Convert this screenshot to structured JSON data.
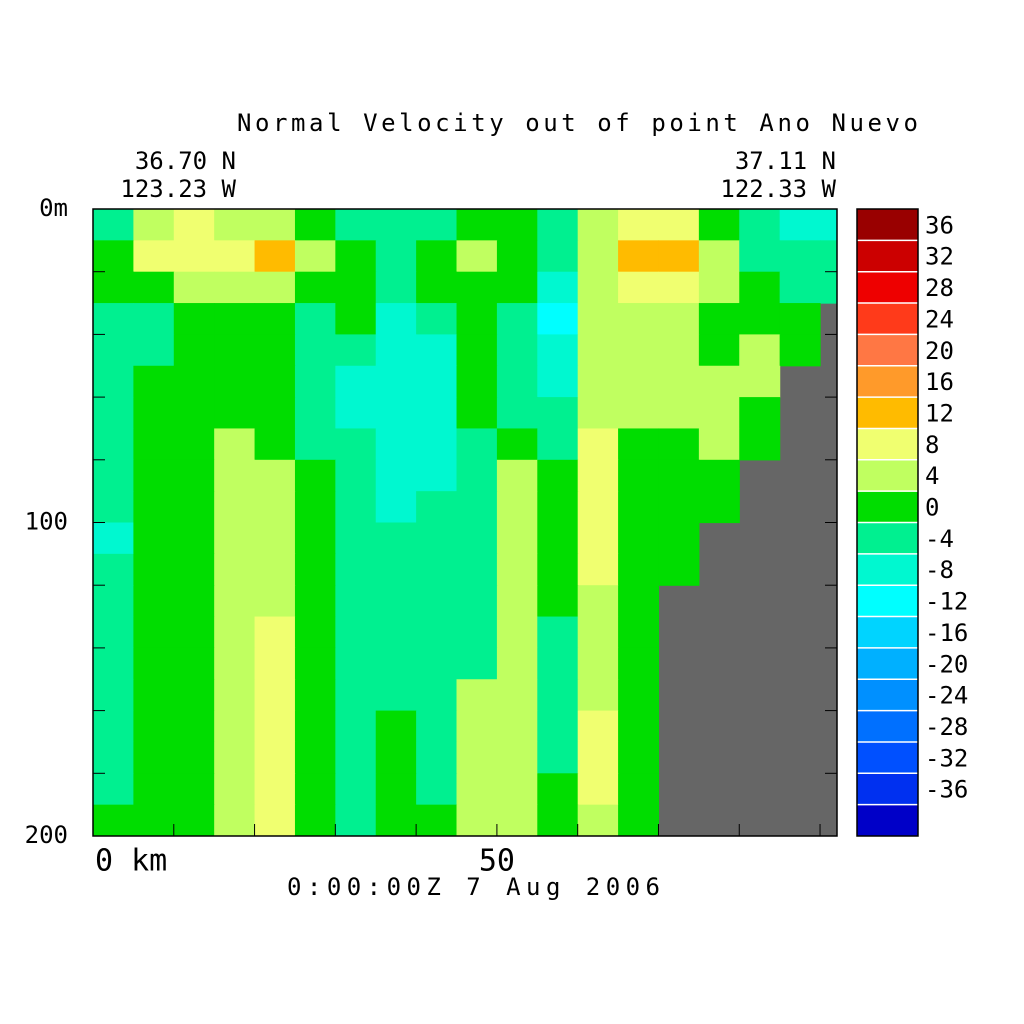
{
  "chart_data": {
    "type": "contourf",
    "title": "Normal Velocity out of point Ano Nuevo",
    "start_lat": "36.70 N",
    "start_lon": "123.23 W",
    "end_lat": "37.11 N",
    "end_lon": "122.33 W",
    "time_label": "0:00:00Z   7 Aug 2006",
    "xlim": [
      0,
      92.1
    ],
    "xticks": [
      {
        "value": 0,
        "label": "0 km"
      },
      50
    ],
    "xminor": [
      10,
      20,
      30,
      40,
      60,
      70,
      80,
      90
    ],
    "ylim": [
      0,
      200
    ],
    "yticks": [
      {
        "value": 0,
        "label": "0m"
      },
      100,
      200
    ],
    "yminor": [
      20,
      40,
      60,
      80,
      120,
      140,
      160,
      180
    ],
    "y_reversed": true,
    "land_color": "#666666",
    "clim": [
      -40,
      40
    ],
    "cticks": [
      -36,
      -32,
      -28,
      -24,
      -20,
      -16,
      -12,
      -8,
      -4,
      0,
      4,
      8,
      12,
      16,
      20,
      24,
      28,
      32,
      36
    ],
    "colors": [
      "#0000c8",
      "#0030f0",
      "#0050ff",
      "#0070ff",
      "#0090ff",
      "#00b0ff",
      "#00d4ff",
      "#00ffff",
      "#00f8d0",
      "#00f090",
      "#00dd00",
      "#c0ff60",
      "#f0ff70",
      "#ffbb00",
      "#ff9a2a",
      "#ff7744",
      "#ff3a1a",
      "#ee0000",
      "#cc0000",
      "#990000"
    ],
    "x": [
      2.5,
      7.5,
      12.5,
      17.5,
      22.5,
      27.5,
      32.5,
      37.5,
      42.5,
      47.5,
      52.5,
      57.5,
      62.5,
      67.5,
      72.5,
      77.5,
      82.5,
      87.5,
      92.5
    ],
    "depth": [
      5,
      15,
      25,
      35,
      45,
      55,
      65,
      75,
      85,
      95,
      105,
      115,
      125,
      135,
      145,
      155,
      165,
      175,
      185,
      195
    ],
    "z": [
      [
        -2,
        6,
        10,
        6,
        6,
        2,
        -2,
        -2,
        -2,
        2,
        2,
        -2,
        6,
        10,
        10,
        2,
        -2,
        -6,
        -6
      ],
      [
        2,
        10,
        10,
        10,
        14,
        6,
        2,
        -2,
        2,
        6,
        2,
        -2,
        6,
        14,
        14,
        6,
        -2,
        -2,
        -2
      ],
      [
        2,
        2,
        6,
        6,
        6,
        2,
        2,
        -2,
        2,
        2,
        2,
        -6,
        6,
        10,
        10,
        6,
        2,
        -2,
        -2
      ],
      [
        -2,
        -2,
        2,
        2,
        2,
        -2,
        2,
        -6,
        -2,
        2,
        -2,
        -10,
        6,
        6,
        6,
        2,
        2,
        2,
        null
      ],
      [
        -2,
        -2,
        2,
        2,
        2,
        -2,
        -2,
        -6,
        -6,
        2,
        -2,
        -6,
        6,
        6,
        6,
        2,
        6,
        2,
        null
      ],
      [
        -2,
        2,
        2,
        2,
        2,
        -2,
        -6,
        -6,
        -6,
        2,
        -2,
        -6,
        6,
        6,
        6,
        6,
        6,
        null,
        null
      ],
      [
        -2,
        2,
        2,
        2,
        2,
        -2,
        -6,
        -6,
        -6,
        2,
        -2,
        -2,
        6,
        6,
        6,
        6,
        2,
        null,
        null
      ],
      [
        -2,
        2,
        2,
        6,
        2,
        -2,
        -2,
        -6,
        -6,
        -2,
        2,
        -2,
        10,
        2,
        2,
        6,
        2,
        null,
        null
      ],
      [
        -2,
        2,
        2,
        6,
        6,
        2,
        -2,
        -6,
        -6,
        -2,
        6,
        2,
        10,
        2,
        2,
        2,
        null,
        null,
        null
      ],
      [
        -2,
        2,
        2,
        6,
        6,
        2,
        -2,
        -6,
        -2,
        -2,
        6,
        2,
        10,
        2,
        2,
        2,
        null,
        null,
        null
      ],
      [
        -6,
        2,
        2,
        6,
        6,
        2,
        -2,
        -2,
        -2,
        -2,
        6,
        2,
        10,
        2,
        2,
        null,
        null,
        null,
        null
      ],
      [
        -2,
        2,
        2,
        6,
        6,
        2,
        -2,
        -2,
        -2,
        -2,
        6,
        2,
        10,
        2,
        2,
        null,
        null,
        null,
        null
      ],
      [
        -2,
        2,
        2,
        6,
        6,
        2,
        -2,
        -2,
        -2,
        -2,
        6,
        2,
        6,
        2,
        null,
        null,
        null,
        null,
        null
      ],
      [
        -2,
        2,
        2,
        6,
        10,
        2,
        -2,
        -2,
        -2,
        -2,
        6,
        -2,
        6,
        2,
        null,
        null,
        null,
        null,
        null
      ],
      [
        -2,
        2,
        2,
        6,
        10,
        2,
        -2,
        -2,
        -2,
        -2,
        6,
        -2,
        6,
        2,
        null,
        null,
        null,
        null,
        null
      ],
      [
        -2,
        2,
        2,
        6,
        10,
        2,
        -2,
        -2,
        -2,
        6,
        6,
        -2,
        6,
        2,
        null,
        null,
        null,
        null,
        null
      ],
      [
        -2,
        2,
        2,
        6,
        10,
        2,
        -2,
        2,
        -2,
        6,
        6,
        -2,
        10,
        2,
        null,
        null,
        null,
        null,
        null
      ],
      [
        -2,
        2,
        2,
        6,
        10,
        2,
        -2,
        2,
        -2,
        6,
        6,
        -2,
        10,
        2,
        null,
        null,
        null,
        null,
        null
      ],
      [
        -2,
        2,
        2,
        6,
        10,
        2,
        -2,
        2,
        -2,
        6,
        6,
        2,
        10,
        2,
        null,
        null,
        null,
        null,
        null
      ],
      [
        2,
        2,
        2,
        6,
        10,
        2,
        -2,
        2,
        2,
        6,
        6,
        2,
        6,
        2,
        null,
        null,
        null,
        null,
        null
      ]
    ]
  }
}
